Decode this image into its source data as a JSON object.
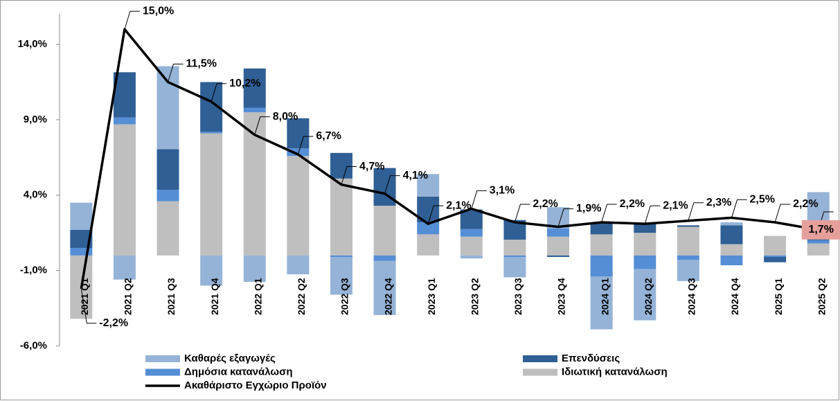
{
  "chart_data": {
    "type": "bar",
    "categories": [
      "2021 Q1",
      "2021 Q2",
      "2021 Q3",
      "2021 Q4",
      "2022 Q1",
      "2022 Q2",
      "2022 Q3",
      "2022 Q4",
      "2023 Q1",
      "2023 Q2",
      "2023 Q3",
      "2023 Q4",
      "2024 Q1",
      "2024 Q2",
      "2024 Q3",
      "2024 Q4",
      "2025 Q1",
      "2025 Q2"
    ],
    "series": [
      {
        "name": "Ιδιωτική κατανάλωση",
        "color": "#bfbfbf",
        "values": [
          -4.2,
          8.7,
          3.6,
          8.1,
          9.5,
          6.6,
          5.1,
          3.3,
          1.4,
          1.25,
          1.05,
          1.25,
          1.4,
          1.5,
          1.9,
          0.75,
          1.3,
          0.8
        ]
      },
      {
        "name": "Δημόσια κατανάλωση",
        "color": "#558ed5",
        "values": [
          0.5,
          0.45,
          0.75,
          0.1,
          0.3,
          0.5,
          -0.1,
          -0.35,
          0.8,
          0.5,
          -0.1,
          0.55,
          -1.4,
          -0.9,
          -0.3,
          -0.65,
          -0.1,
          0.2
        ]
      },
      {
        "name": "Επενδύσεις",
        "color": "#2f5f94",
        "values": [
          1.2,
          3.0,
          2.7,
          3.3,
          2.6,
          2.0,
          1.7,
          2.5,
          1.7,
          1.3,
          1.3,
          -0.1,
          0.8,
          0.65,
          0.1,
          1.25,
          -0.35,
          0.4
        ]
      },
      {
        "name": "Καθαρές εξαγωγές",
        "color": "#95b3d7",
        "values": [
          1.8,
          -1.6,
          5.5,
          -2.0,
          -1.75,
          -1.25,
          -2.5,
          -3.6,
          1.5,
          -0.2,
          -1.35,
          1.4,
          -3.5,
          -3.4,
          -1.4,
          0.2,
          0,
          2.8
        ]
      },
      {
        "name": "Ακαθάριστο Εγχώριο Προϊόν",
        "type": "line",
        "color": "#000000",
        "values": [
          -2.2,
          15.0,
          11.5,
          10.2,
          8.0,
          6.7,
          4.7,
          4.1,
          2.1,
          3.1,
          2.2,
          1.9,
          2.2,
          2.1,
          2.3,
          2.5,
          2.2,
          1.7
        ],
        "value_labels": [
          "-2,2%",
          "15,0%",
          "11,5%",
          "10,2%",
          "8,0%",
          "6,7%",
          "4,7%",
          "4,1%",
          "2,1%",
          "3,1%",
          "2,2%",
          "1,9%",
          "2,2%",
          "2,1%",
          "2,3%",
          "2,5%",
          "2,2%",
          "1,7%"
        ]
      }
    ],
    "ylim": [
      -6,
      16
    ],
    "yticks": [
      {
        "value": -6,
        "label": "-6,0%"
      },
      {
        "value": -1,
        "label": "-1,0%"
      },
      {
        "value": 4,
        "label": "4,0%"
      },
      {
        "value": 9,
        "label": "9,0%"
      },
      {
        "value": 14,
        "label": "14,0%"
      }
    ]
  }
}
